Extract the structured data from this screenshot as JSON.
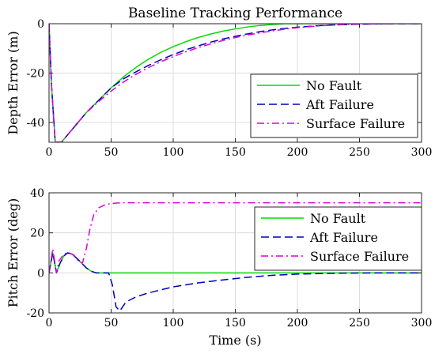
{
  "chart_data": [
    {
      "type": "line",
      "title": "Baseline Tracking Performance",
      "xlabel": "",
      "ylabel": "Depth Error (m)",
      "xlim": [
        0,
        300
      ],
      "ylim": [
        -48,
        0
      ],
      "xticks": [
        0,
        50,
        100,
        150,
        200,
        250,
        300
      ],
      "yticks": [
        0,
        -20,
        -40
      ],
      "grid": true,
      "legend_position": "lower-right",
      "series": [
        {
          "name": "No Fault",
          "color": "#00dd00",
          "line_style": "solid",
          "x": [
            0,
            2,
            5,
            10,
            20,
            30,
            40,
            50,
            60,
            70,
            80,
            90,
            100,
            110,
            120,
            130,
            140,
            150,
            160,
            170,
            180,
            190,
            200,
            220,
            240,
            260,
            280,
            300
          ],
          "y": [
            0,
            -25,
            -48,
            -48,
            -42,
            -36,
            -31,
            -26,
            -21.5,
            -17.7,
            -14.4,
            -11.6,
            -9.3,
            -7.3,
            -5.6,
            -4.2,
            -3,
            -2.1,
            -1.3,
            -0.7,
            -0.3,
            0,
            0,
            0,
            0,
            0,
            0,
            0
          ]
        },
        {
          "name": "Aft Failure",
          "color": "#0000bb",
          "line_style": "dashed",
          "x": [
            0,
            2,
            5,
            10,
            20,
            30,
            40,
            50,
            60,
            70,
            80,
            90,
            100,
            110,
            120,
            130,
            140,
            150,
            160,
            170,
            180,
            190,
            200,
            220,
            240,
            260,
            280,
            300
          ],
          "y": [
            0,
            -25,
            -48,
            -48,
            -42,
            -36,
            -31,
            -26,
            -22.3,
            -19.5,
            -16.9,
            -14.6,
            -12.5,
            -10.6,
            -9,
            -7.5,
            -6.2,
            -5.1,
            -4.1,
            -3.2,
            -2.5,
            -1.9,
            -1.4,
            -0.7,
            -0.3,
            -0.1,
            0,
            0
          ]
        },
        {
          "name": "Surface Failure",
          "color": "#dd00dd",
          "line_style": "dashdot",
          "x": [
            0,
            2,
            5,
            10,
            20,
            30,
            40,
            50,
            60,
            70,
            80,
            90,
            100,
            110,
            120,
            130,
            140,
            150,
            160,
            170,
            180,
            190,
            200,
            220,
            240,
            260,
            280,
            300
          ],
          "y": [
            0,
            -25,
            -48,
            -48,
            -42,
            -36,
            -31.5,
            -27.3,
            -23.6,
            -20.5,
            -17.8,
            -15.4,
            -13.3,
            -11.4,
            -9.7,
            -8.2,
            -6.8,
            -5.6,
            -4.6,
            -3.7,
            -2.9,
            -2.2,
            -1.6,
            -0.8,
            -0.3,
            -0.1,
            0,
            0
          ]
        }
      ]
    },
    {
      "type": "line",
      "title": "",
      "xlabel": "Time (s)",
      "ylabel": "Pitch Error (deg)",
      "xlim": [
        0,
        300
      ],
      "ylim": [
        -20,
        40
      ],
      "xticks": [
        0,
        50,
        100,
        150,
        200,
        250,
        300
      ],
      "yticks": [
        40,
        20,
        0,
        -20
      ],
      "grid": true,
      "legend_position": "upper-right",
      "series": [
        {
          "name": "No Fault",
          "color": "#00dd00",
          "line_style": "solid",
          "x": [
            0,
            3,
            6,
            9,
            12,
            15,
            18,
            22,
            26,
            30,
            34,
            38,
            42,
            50,
            100,
            150,
            200,
            250,
            300
          ],
          "y": [
            0,
            10,
            0,
            5,
            8.5,
            10,
            9.5,
            7.5,
            5,
            2.5,
            0.8,
            0,
            0,
            0,
            0,
            0,
            0,
            0,
            0
          ]
        },
        {
          "name": "Aft Failure",
          "color": "#0000bb",
          "line_style": "dashed",
          "x": [
            0,
            3,
            6,
            9,
            12,
            15,
            18,
            22,
            26,
            30,
            34,
            38,
            42,
            48,
            51,
            54,
            57,
            62,
            70,
            80,
            90,
            100,
            120,
            140,
            160,
            180,
            200,
            230,
            260,
            300
          ],
          "y": [
            0,
            10,
            0,
            5,
            8.5,
            10,
            9.5,
            7.5,
            5,
            2.5,
            0.8,
            0,
            0,
            0,
            -6,
            -17,
            -19,
            -14.5,
            -12,
            -10,
            -8.5,
            -7,
            -5,
            -3.5,
            -2.2,
            -1.2,
            -0.6,
            -0.2,
            0,
            0
          ]
        },
        {
          "name": "Surface Failure",
          "color": "#dd00dd",
          "line_style": "dashdot",
          "x": [
            0,
            3,
            6,
            8,
            12,
            16,
            20,
            24,
            27,
            30,
            33,
            36,
            40,
            45,
            50,
            55,
            60,
            80,
            100,
            150,
            200,
            250,
            300
          ],
          "y": [
            0,
            12,
            0,
            6,
            9.5,
            10,
            9,
            5.5,
            5,
            12,
            22,
            29,
            32.5,
            34,
            34.6,
            34.9,
            35,
            35,
            35,
            35,
            35,
            35,
            35
          ]
        }
      ]
    }
  ]
}
